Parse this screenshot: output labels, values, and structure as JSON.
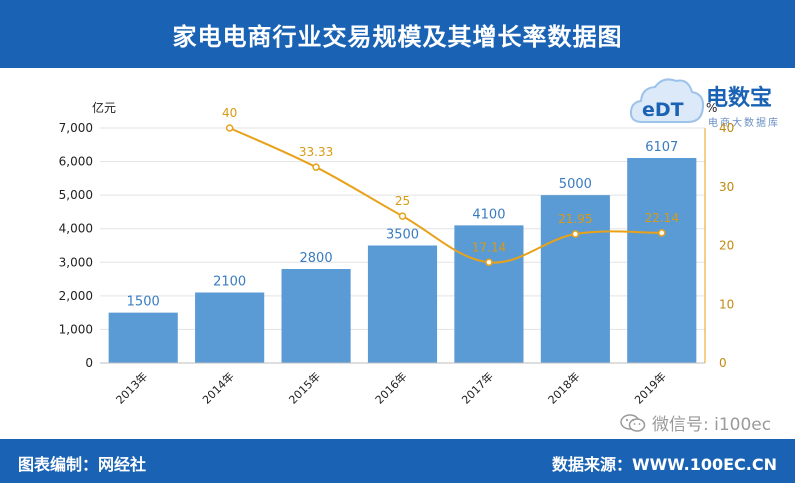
{
  "header": {
    "title": "家电电商行业交易规模及其增长率数据图"
  },
  "footer": {
    "left": "图表编制：网经社",
    "right": "数据来源：WWW.100EC.CN"
  },
  "wechat": {
    "label": "微信号: i100ec"
  },
  "logo": {
    "mark": "eDT",
    "name": "电数宝",
    "tagline": "电商大数据库"
  },
  "colors": {
    "bar": "#5b9bd5",
    "line": "#e8a21a",
    "header": "#1a63b4"
  },
  "chart_data": {
    "type": "bar",
    "categories": [
      "2013年",
      "2014年",
      "2015年",
      "2016年",
      "2017年",
      "2018年",
      "2019年"
    ],
    "series": [
      {
        "type": "bar",
        "axis": "left",
        "values": [
          1500,
          2100,
          2800,
          3500,
          4100,
          5000,
          6107
        ],
        "labels": [
          "1500",
          "2100",
          "2800",
          "3500",
          "4100",
          "5000",
          "6107"
        ]
      },
      {
        "type": "line",
        "axis": "right",
        "values": [
          null,
          40,
          33.33,
          25,
          17.14,
          21.95,
          22.14
        ],
        "labels": [
          "",
          "40",
          "33.33",
          "25",
          "17.14",
          "21.95",
          "22.14"
        ]
      }
    ],
    "ylabel": "亿元",
    "y2label": "%",
    "ylim": [
      0,
      7000
    ],
    "y2lim": [
      0,
      40
    ],
    "yticks": [
      "0",
      "1,000",
      "2,000",
      "3,000",
      "4,000",
      "5,000",
      "6,000",
      "7,000"
    ],
    "yticks_values": [
      0,
      1000,
      2000,
      3000,
      4000,
      5000,
      6000,
      7000
    ],
    "y2ticks": [
      "0",
      "10",
      "20",
      "30",
      "40"
    ],
    "y2ticks_values": [
      0,
      10,
      20,
      30,
      40
    ],
    "grid": true,
    "legend": "none"
  }
}
